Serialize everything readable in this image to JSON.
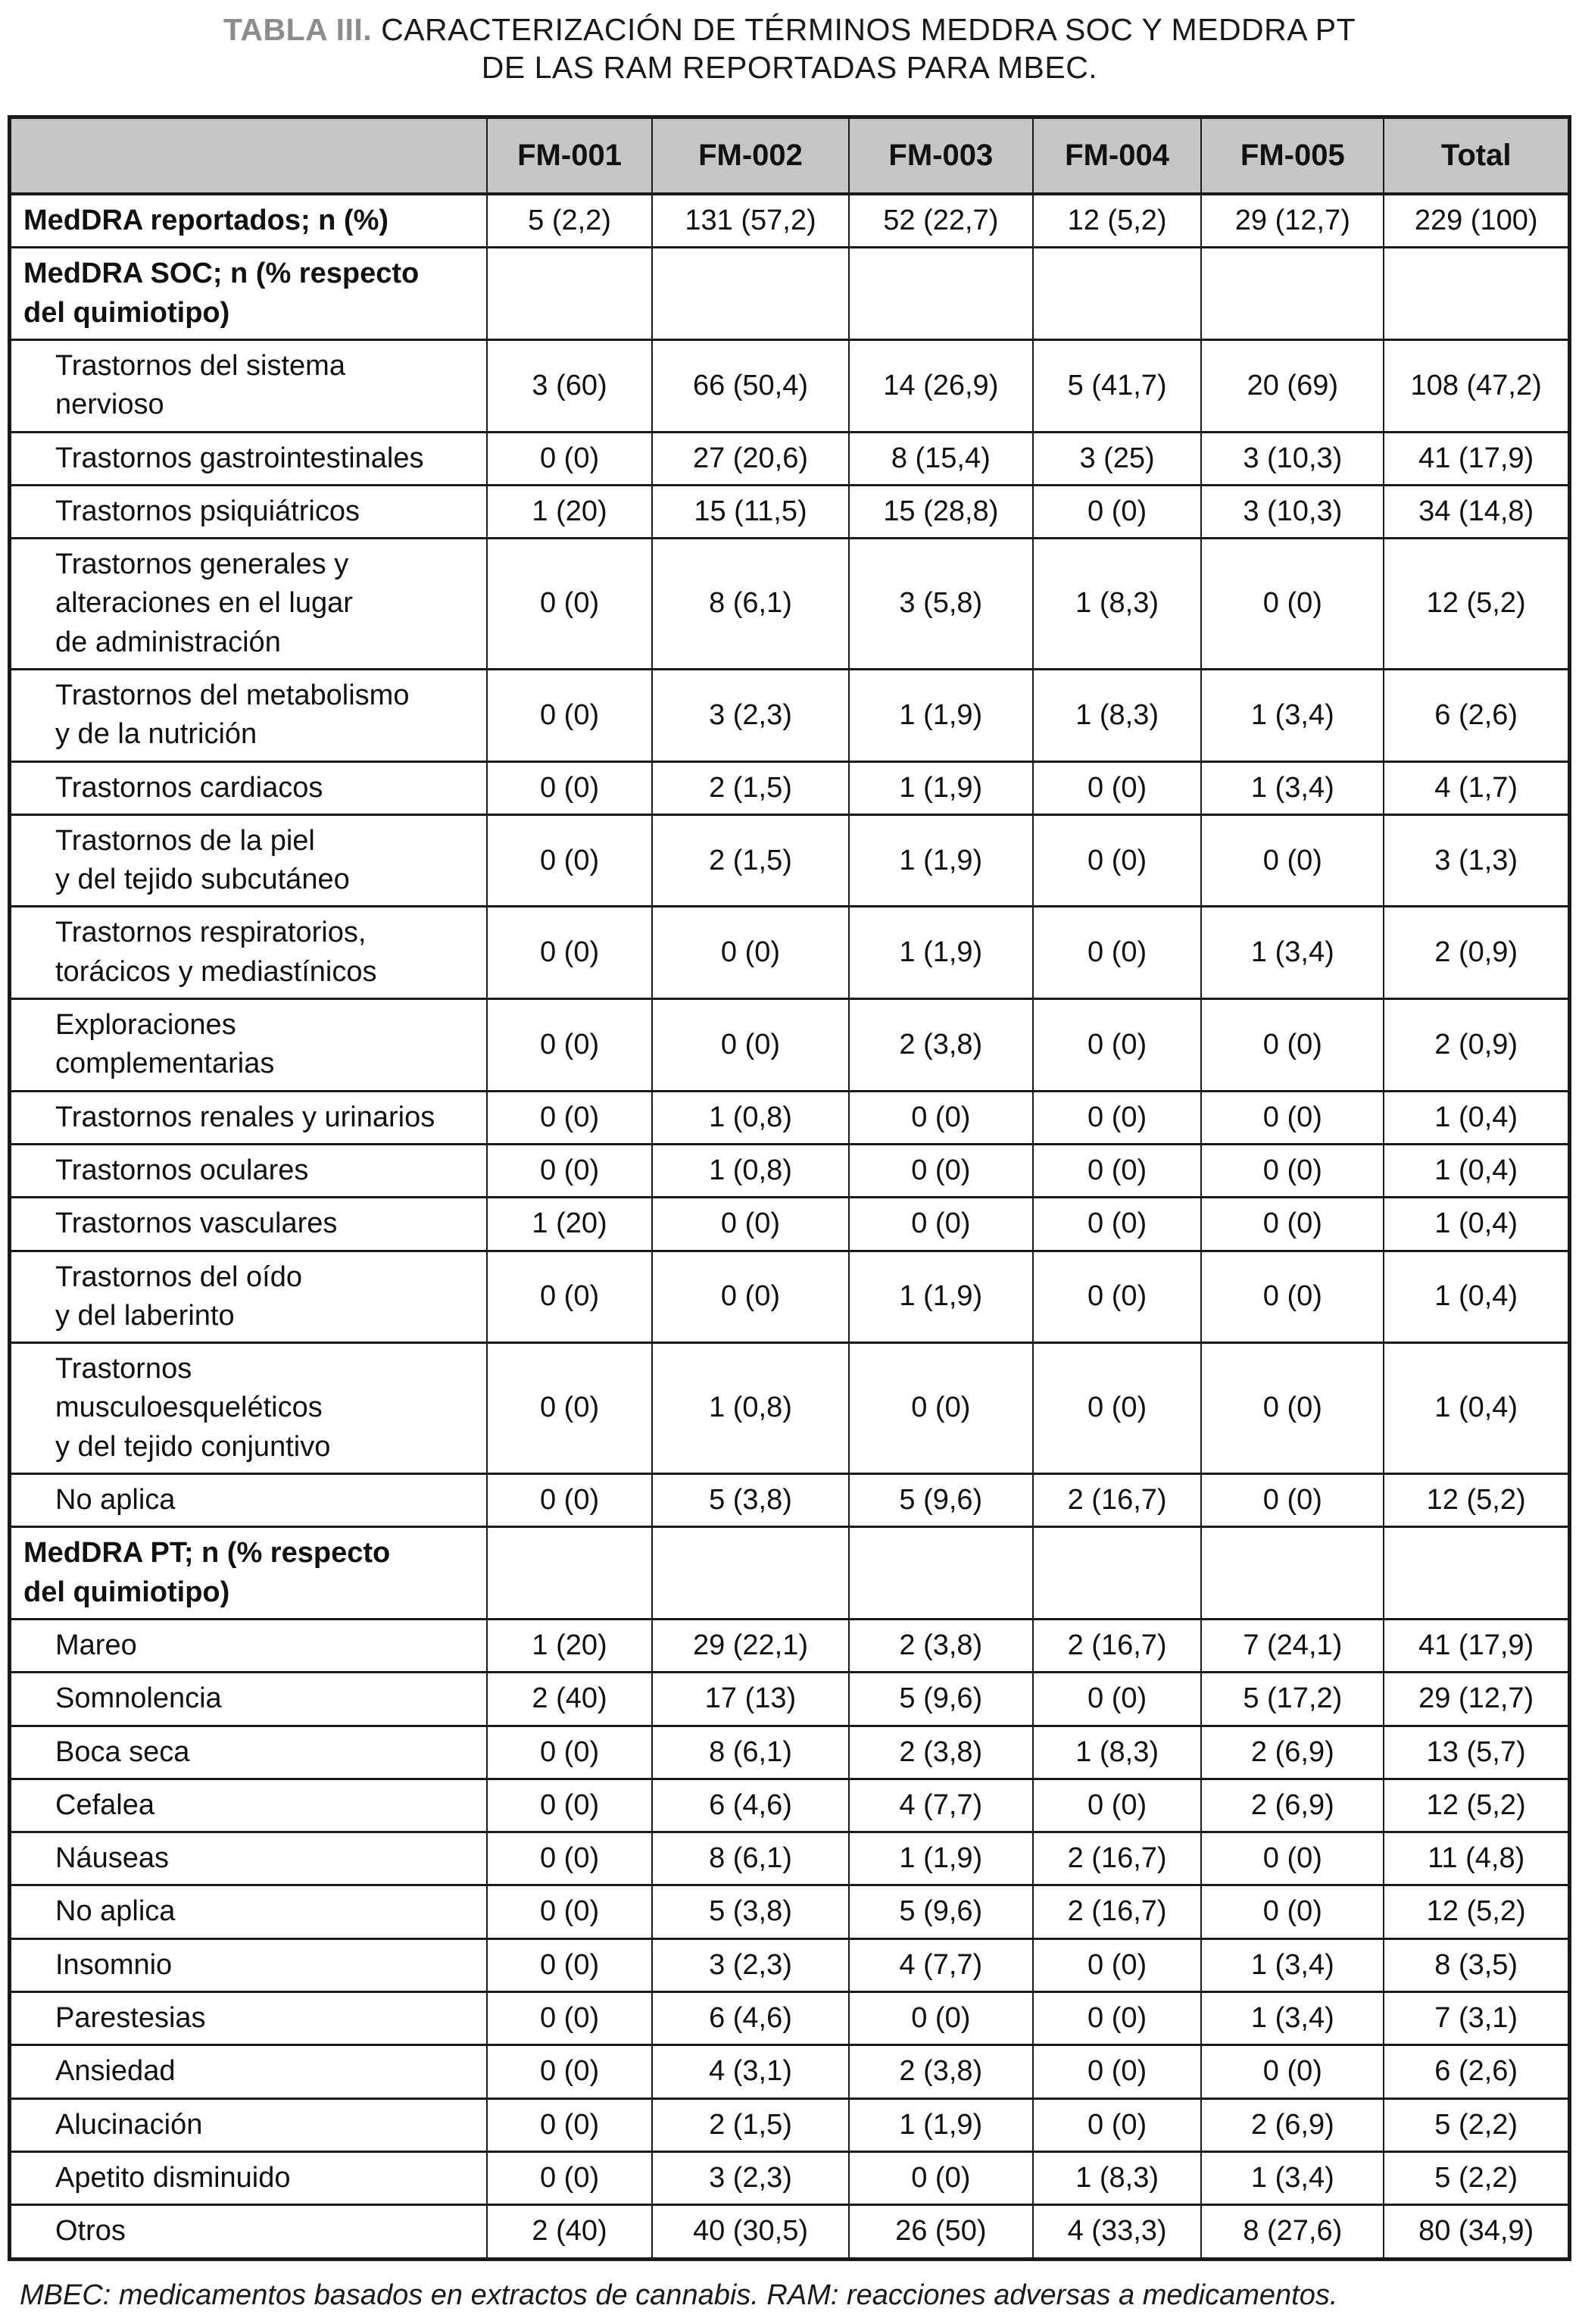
{
  "title": {
    "label": "TABLA III.",
    "line1_rest": "CARACTERIZACIÓN DE TÉRMINOS MEDDRA SOC Y MEDDRA PT",
    "line2": "DE LAS RAM REPORTADAS PARA MBEC."
  },
  "table": {
    "columns": [
      "",
      "FM-001",
      "FM-002",
      "FM-003",
      "FM-004",
      "FM-005",
      "Total"
    ],
    "rows": [
      {
        "label": "MedDRA reportados; n (%)",
        "style": "bold",
        "values": [
          "5 (2,2)",
          "131 (57,2)",
          "52 (22,7)",
          "12 (5,2)",
          "29 (12,7)",
          "229 (100)"
        ]
      },
      {
        "label": "MedDRA SOC; n (% respecto\ndel quimiotipo)",
        "style": "section",
        "values": [
          "",
          "",
          "",
          "",
          "",
          ""
        ]
      },
      {
        "label": "Trastornos del sistema\nnervioso",
        "style": "item",
        "values": [
          "3 (60)",
          "66 (50,4)",
          "14 (26,9)",
          "5 (41,7)",
          "20 (69)",
          "108 (47,2)"
        ]
      },
      {
        "label": "Trastornos gastrointestinales",
        "style": "item",
        "values": [
          "0 (0)",
          "27 (20,6)",
          "8 (15,4)",
          "3 (25)",
          "3 (10,3)",
          "41 (17,9)"
        ]
      },
      {
        "label": "Trastornos psiquiátricos",
        "style": "item",
        "values": [
          "1 (20)",
          "15 (11,5)",
          "15 (28,8)",
          "0 (0)",
          "3 (10,3)",
          "34 (14,8)"
        ]
      },
      {
        "label": "Trastornos generales y\nalteraciones en el lugar\nde administración",
        "style": "item",
        "values": [
          "0 (0)",
          "8 (6,1)",
          "3 (5,8)",
          "1 (8,3)",
          "0 (0)",
          "12 (5,2)"
        ]
      },
      {
        "label": "Trastornos del metabolismo\ny de la nutrición",
        "style": "item",
        "values": [
          "0 (0)",
          "3 (2,3)",
          "1 (1,9)",
          "1 (8,3)",
          "1 (3,4)",
          "6 (2,6)"
        ]
      },
      {
        "label": "Trastornos cardiacos",
        "style": "item",
        "values": [
          "0 (0)",
          "2 (1,5)",
          "1 (1,9)",
          "0 (0)",
          "1 (3,4)",
          "4 (1,7)"
        ]
      },
      {
        "label": "Trastornos de la piel\ny del tejido subcutáneo",
        "style": "item",
        "values": [
          "0 (0)",
          "2 (1,5)",
          "1 (1,9)",
          "0 (0)",
          "0 (0)",
          "3 (1,3)"
        ]
      },
      {
        "label": "Trastornos respiratorios,\ntorácicos y mediastínicos",
        "style": "item",
        "values": [
          "0 (0)",
          "0 (0)",
          "1 (1,9)",
          "0 (0)",
          "1 (3,4)",
          "2 (0,9)"
        ]
      },
      {
        "label": "Exploraciones\ncomplementarias",
        "style": "item",
        "values": [
          "0 (0)",
          "0 (0)",
          "2 (3,8)",
          "0 (0)",
          "0 (0)",
          "2 (0,9)"
        ]
      },
      {
        "label": "Trastornos renales y urinarios",
        "style": "item",
        "values": [
          "0 (0)",
          "1 (0,8)",
          "0 (0)",
          "0 (0)",
          "0 (0)",
          "1 (0,4)"
        ]
      },
      {
        "label": "Trastornos oculares",
        "style": "item",
        "values": [
          "0 (0)",
          "1 (0,8)",
          "0 (0)",
          "0 (0)",
          "0 (0)",
          "1 (0,4)"
        ]
      },
      {
        "label": "Trastornos vasculares",
        "style": "item",
        "values": [
          "1 (20)",
          "0 (0)",
          "0 (0)",
          "0 (0)",
          "0 (0)",
          "1 (0,4)"
        ]
      },
      {
        "label": "Trastornos del oído\ny del laberinto",
        "style": "item",
        "values": [
          "0 (0)",
          "0 (0)",
          "1 (1,9)",
          "0 (0)",
          "0 (0)",
          "1 (0,4)"
        ]
      },
      {
        "label": "Trastornos\nmusculoesqueléticos\ny del tejido conjuntivo",
        "style": "item",
        "values": [
          "0 (0)",
          "1 (0,8)",
          "0 (0)",
          "0 (0)",
          "0 (0)",
          "1 (0,4)"
        ]
      },
      {
        "label": "No aplica",
        "style": "item",
        "values": [
          "0 (0)",
          "5 (3,8)",
          "5 (9,6)",
          "2 (16,7)",
          "0 (0)",
          "12 (5,2)"
        ]
      },
      {
        "label": "MedDRA PT; n (% respecto\ndel quimiotipo)",
        "style": "section",
        "values": [
          "",
          "",
          "",
          "",
          "",
          ""
        ]
      },
      {
        "label": "Mareo",
        "style": "item",
        "values": [
          "1 (20)",
          "29 (22,1)",
          "2 (3,8)",
          "2 (16,7)",
          "7 (24,1)",
          "41 (17,9)"
        ]
      },
      {
        "label": "Somnolencia",
        "style": "item",
        "values": [
          "2 (40)",
          "17 (13)",
          "5 (9,6)",
          "0 (0)",
          "5 (17,2)",
          "29 (12,7)"
        ]
      },
      {
        "label": "Boca seca",
        "style": "item",
        "values": [
          "0 (0)",
          "8 (6,1)",
          "2 (3,8)",
          "1 (8,3)",
          "2 (6,9)",
          "13 (5,7)"
        ]
      },
      {
        "label": "Cefalea",
        "style": "item",
        "values": [
          "0 (0)",
          "6 (4,6)",
          "4 (7,7)",
          "0 (0)",
          "2 (6,9)",
          "12 (5,2)"
        ]
      },
      {
        "label": "Náuseas",
        "style": "item",
        "values": [
          "0 (0)",
          "8 (6,1)",
          "1 (1,9)",
          "2 (16,7)",
          "0 (0)",
          "11 (4,8)"
        ]
      },
      {
        "label": "No aplica",
        "style": "item",
        "values": [
          "0 (0)",
          "5 (3,8)",
          "5 (9,6)",
          "2 (16,7)",
          "0 (0)",
          "12 (5,2)"
        ]
      },
      {
        "label": "Insomnio",
        "style": "item",
        "values": [
          "0 (0)",
          "3 (2,3)",
          "4 (7,7)",
          "0 (0)",
          "1 (3,4)",
          "8 (3,5)"
        ]
      },
      {
        "label": "Parestesias",
        "style": "item",
        "values": [
          "0 (0)",
          "6 (4,6)",
          "0 (0)",
          "0 (0)",
          "1 (3,4)",
          "7 (3,1)"
        ]
      },
      {
        "label": "Ansiedad",
        "style": "item",
        "values": [
          "0 (0)",
          "4 (3,1)",
          "2 (3,8)",
          "0 (0)",
          "0 (0)",
          "6 (2,6)"
        ]
      },
      {
        "label": "Alucinación",
        "style": "item",
        "values": [
          "0 (0)",
          "2 (1,5)",
          "1 (1,9)",
          "0 (0)",
          "2 (6,9)",
          "5 (2,2)"
        ]
      },
      {
        "label": "Apetito disminuido",
        "style": "item",
        "values": [
          "0 (0)",
          "3 (2,3)",
          "0 (0)",
          "1 (8,3)",
          "1 (3,4)",
          "5 (2,2)"
        ]
      },
      {
        "label": "Otros",
        "style": "item",
        "values": [
          "2 (40)",
          "40 (30,5)",
          "26 (50)",
          "4 (33,3)",
          "8 (27,6)",
          "80 (34,9)"
        ]
      }
    ]
  },
  "footnote": "MBEC: medicamentos basados en extractos de cannabis. RAM: reacciones adversas a medicamentos."
}
